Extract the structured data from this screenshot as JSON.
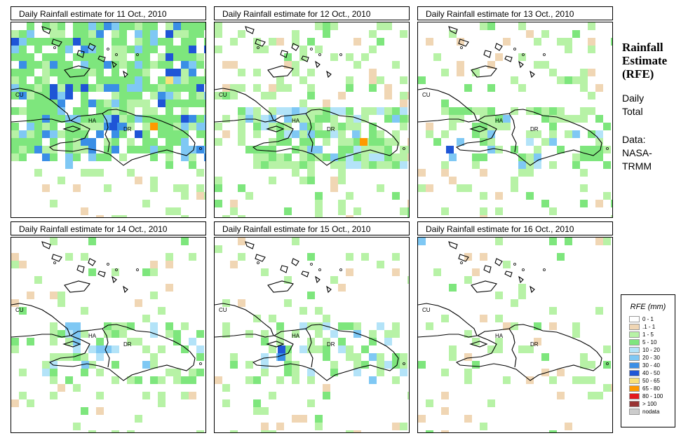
{
  "panels": [
    {
      "title": "Daily Rainfall estimate for  11 Oct., 2010",
      "intensity": "very-high"
    },
    {
      "title": "Daily Rainfall estimate for  12 Oct., 2010",
      "intensity": "medium"
    },
    {
      "title": "Daily Rainfall estimate for  13 Oct., 2010",
      "intensity": "low"
    },
    {
      "title": "Daily Rainfall estimate for  14 Oct., 2010",
      "intensity": "low"
    },
    {
      "title": "Daily Rainfall estimate for  15 Oct., 2010",
      "intensity": "low"
    },
    {
      "title": "Daily Rainfall estimate for  16 Oct., 2010",
      "intensity": "very-low"
    }
  ],
  "map_labels": {
    "cuba": "CU",
    "haiti": "HA",
    "dominican_republic": "DR"
  },
  "sidebar": {
    "title_line1": "Rainfall",
    "title_line2": "Estimate",
    "title_line3": "(RFE)",
    "period_line1": "Daily",
    "period_line2": "Total",
    "source_line1": "Data:",
    "source_line2": "NASA-",
    "source_line3": "TRMM"
  },
  "legend": {
    "title": "RFE (mm)",
    "items": [
      {
        "label": "0 - 1",
        "color": "#ffffff"
      },
      {
        "label": ".1 - 1",
        "color": "#f0d6b4"
      },
      {
        "label": "1 - 5",
        "color": "#b7f2a6"
      },
      {
        "label": "5 - 10",
        "color": "#7ee67d"
      },
      {
        "label": "10 - 20",
        "color": "#b3e3f8"
      },
      {
        "label": "20 - 30",
        "color": "#7fc8f4"
      },
      {
        "label": "30 - 40",
        "color": "#3a8ee6"
      },
      {
        "label": "40 - 50",
        "color": "#1f55d6"
      },
      {
        "label": "50 - 65",
        "color": "#f7e07a"
      },
      {
        "label": "65 - 80",
        "color": "#ff9900"
      },
      {
        "label": "80 - 100",
        "color": "#e31a1c"
      },
      {
        "label": "> 100",
        "color": "#993333"
      },
      {
        "label": "nodata",
        "color": "#cccccc"
      }
    ]
  }
}
